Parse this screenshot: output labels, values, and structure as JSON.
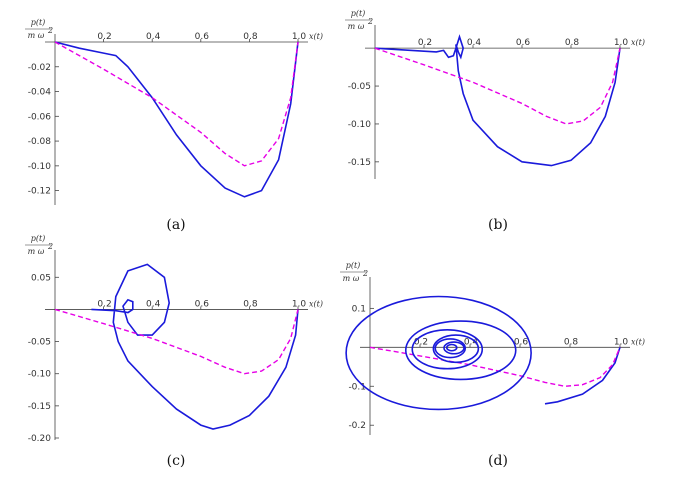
{
  "chart_data": [
    {
      "type": "line",
      "caption": "(a)",
      "ylabel_top": "p(t)",
      "ylabel_bottom": "m ω²",
      "ylabel_exp": "2",
      "xlabel": "x(t)",
      "xlim": [
        0.0,
        1.0
      ],
      "ylim": [
        -0.13,
        0.0
      ],
      "x_ticks": [
        0.2,
        0.4,
        0.6,
        0.8,
        1.0
      ],
      "x_tick_labels": [
        "0.2",
        "0.4",
        "0.6",
        "0.8",
        "1.0"
      ],
      "y_ticks": [
        -0.02,
        -0.04,
        -0.06,
        -0.08,
        -0.1,
        -0.12
      ],
      "y_tick_labels": [
        "-0.02",
        "-0.04",
        "-0.06",
        "-0.08",
        "-0.10",
        "-0.12"
      ],
      "series": [
        {
          "style": "solid",
          "color": "#1a1adb",
          "x": [
            0.0,
            0.1,
            0.2,
            0.25,
            0.3,
            0.4,
            0.5,
            0.6,
            0.7,
            0.78,
            0.85,
            0.92,
            0.97,
            1.0
          ],
          "y": [
            0.0,
            -0.005,
            -0.009,
            -0.011,
            -0.02,
            -0.045,
            -0.075,
            -0.1,
            -0.118,
            -0.125,
            -0.12,
            -0.095,
            -0.05,
            0.0
          ]
        },
        {
          "style": "dashed",
          "color": "#e600e6",
          "x": [
            0.0,
            0.2,
            0.4,
            0.6,
            0.7,
            0.78,
            0.85,
            0.92,
            0.97,
            1.0
          ],
          "y": [
            0.0,
            -0.022,
            -0.045,
            -0.073,
            -0.09,
            -0.1,
            -0.096,
            -0.078,
            -0.045,
            0.0
          ]
        }
      ]
    },
    {
      "type": "line",
      "caption": "(b)",
      "ylabel_top": "p(t)",
      "ylabel_bottom": "m ω²",
      "ylabel_exp": "2",
      "xlabel": "x(t)",
      "xlim": [
        0.0,
        1.0
      ],
      "ylim": [
        -0.17,
        0.02
      ],
      "x_ticks": [
        0.2,
        0.4,
        0.6,
        0.8,
        1.0
      ],
      "x_tick_labels": [
        "0.2",
        "0.4",
        "0.6",
        "0.8",
        "1.0"
      ],
      "y_ticks": [
        -0.05,
        -0.1,
        -0.15
      ],
      "y_tick_labels": [
        "-0.05",
        "-0.10",
        "-0.15"
      ],
      "series": [
        {
          "style": "solid",
          "color": "#1a1adb",
          "x": [
            0.0,
            0.1,
            0.2,
            0.25,
            0.28,
            0.3,
            0.32,
            0.33,
            0.345,
            0.36,
            0.35,
            0.34,
            0.33,
            0.34,
            0.36,
            0.4,
            0.5,
            0.6,
            0.72,
            0.8,
            0.88,
            0.94,
            0.98,
            1.0
          ],
          "y": [
            0.0,
            -0.002,
            -0.004,
            -0.005,
            -0.003,
            -0.012,
            -0.01,
            0.0,
            0.015,
            0.0,
            -0.012,
            -0.005,
            0.005,
            -0.03,
            -0.06,
            -0.095,
            -0.13,
            -0.15,
            -0.155,
            -0.148,
            -0.125,
            -0.09,
            -0.045,
            0.0
          ]
        },
        {
          "style": "dashed",
          "color": "#e600e6",
          "x": [
            0.0,
            0.2,
            0.4,
            0.6,
            0.7,
            0.78,
            0.85,
            0.92,
            0.97,
            1.0
          ],
          "y": [
            0.0,
            -0.022,
            -0.045,
            -0.073,
            -0.09,
            -0.1,
            -0.096,
            -0.078,
            -0.045,
            0.0
          ]
        }
      ]
    },
    {
      "type": "line",
      "caption": "(c)",
      "ylabel_top": "p(t)",
      "ylabel_bottom": "m ω²",
      "ylabel_exp": "2",
      "xlabel": "x(t)",
      "xlim": [
        0.0,
        1.0
      ],
      "ylim": [
        -0.2,
        0.08
      ],
      "x_ticks": [
        0.2,
        0.4,
        0.6,
        0.8,
        1.0
      ],
      "x_tick_labels": [
        "0.2",
        "0.4",
        "0.6",
        "0.8",
        "1.0"
      ],
      "y_ticks": [
        0.05,
        -0.05,
        -0.1,
        -0.15,
        -0.2
      ],
      "y_tick_labels": [
        "0.05",
        "-0.05",
        "-0.10",
        "-0.15",
        "-0.20"
      ],
      "series": [
        {
          "style": "solid",
          "color": "#1a1adb",
          "x": [
            0.15,
            0.25,
            0.3,
            0.32,
            0.32,
            0.3,
            0.28,
            0.3,
            0.34,
            0.4,
            0.45,
            0.47,
            0.45,
            0.38,
            0.3,
            0.25,
            0.24,
            0.26,
            0.3,
            0.4,
            0.5,
            0.6,
            0.65,
            0.72,
            0.8,
            0.88,
            0.95,
            0.99,
            1.0
          ],
          "y": [
            0.0,
            -0.002,
            -0.005,
            0.0,
            0.012,
            0.015,
            0.005,
            -0.02,
            -0.04,
            -0.04,
            -0.02,
            0.01,
            0.05,
            0.07,
            0.06,
            0.02,
            -0.02,
            -0.05,
            -0.08,
            -0.12,
            -0.155,
            -0.18,
            -0.186,
            -0.18,
            -0.165,
            -0.135,
            -0.09,
            -0.04,
            0.0
          ]
        },
        {
          "style": "dashed",
          "color": "#e600e6",
          "x": [
            0.0,
            0.2,
            0.4,
            0.6,
            0.7,
            0.78,
            0.85,
            0.92,
            0.97,
            1.0
          ],
          "y": [
            0.0,
            -0.022,
            -0.045,
            -0.073,
            -0.09,
            -0.1,
            -0.096,
            -0.078,
            -0.045,
            0.0
          ]
        }
      ]
    },
    {
      "type": "line",
      "caption": "(d)",
      "ylabel_top": "p(t)",
      "ylabel_bottom": "m ω²",
      "ylabel_exp": "2",
      "xlabel": "x(t)",
      "xlim": [
        0.0,
        1.0
      ],
      "ylim": [
        -0.22,
        0.16
      ],
      "x_ticks": [
        0.2,
        0.4,
        0.6,
        0.8,
        1.0
      ],
      "x_tick_labels": [
        "0.2",
        "0.4",
        "0.6",
        "0.8",
        "1.0"
      ],
      "y_ticks": [
        0.1,
        -0.1,
        -0.2
      ],
      "y_tick_labels": [
        "0.1",
        "-0.1",
        "-0.2"
      ],
      "spiral": {
        "center_x": 0.33,
        "center_y": 0.0,
        "x_half_widths": [
          0.02,
          0.04,
          0.06,
          0.09,
          0.14,
          0.22,
          0.37
        ],
        "y_half_heights": [
          0.008,
          0.015,
          0.024,
          0.035,
          0.05,
          0.075,
          0.145
        ]
      },
      "series": [
        {
          "style": "solid",
          "color": "#1a1adb",
          "x": [
            0.7,
            0.75,
            0.85,
            0.93,
            0.98,
            1.0
          ],
          "y": [
            -0.145,
            -0.14,
            -0.12,
            -0.085,
            -0.04,
            0.0
          ]
        },
        {
          "style": "dashed",
          "color": "#e600e6",
          "x": [
            0.0,
            0.2,
            0.4,
            0.6,
            0.7,
            0.78,
            0.85,
            0.92,
            0.97,
            1.0
          ],
          "y": [
            0.0,
            -0.022,
            -0.045,
            -0.073,
            -0.09,
            -0.1,
            -0.096,
            -0.078,
            -0.045,
            0.0
          ]
        }
      ]
    }
  ]
}
